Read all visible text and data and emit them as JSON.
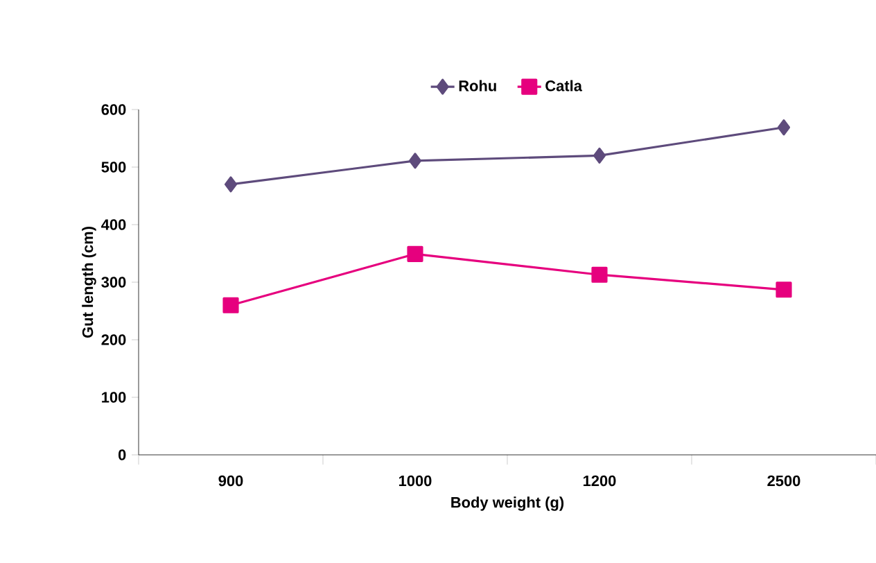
{
  "chart_data": {
    "type": "line",
    "xlabel": "Body weight (g)",
    "ylabel": "Gut length (cm)",
    "categories": [
      "900",
      "1000",
      "1200",
      "2500"
    ],
    "series": [
      {
        "name": "Rohu",
        "color": "#5e4b7c",
        "marker": "diamond",
        "values": [
          470,
          511,
          520,
          569
        ]
      },
      {
        "name": "Catla",
        "color": "#e6007e",
        "marker": "square",
        "values": [
          260,
          349,
          313,
          287
        ]
      }
    ],
    "ylim": [
      0,
      600
    ],
    "yticks": [
      0,
      100,
      200,
      300,
      400,
      500,
      600
    ],
    "grid": false,
    "legend": "top"
  }
}
